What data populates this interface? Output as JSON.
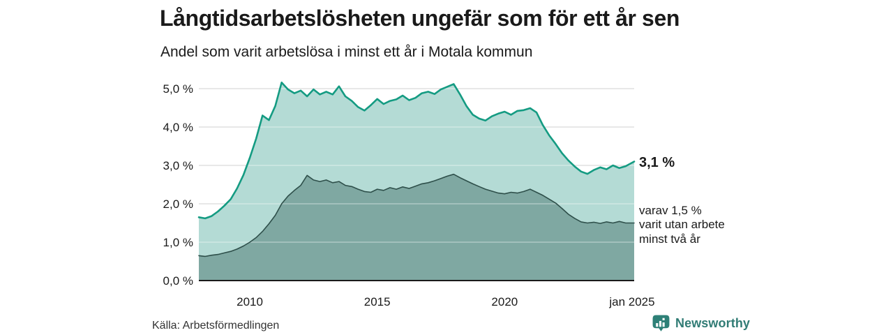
{
  "chart_data": {
    "type": "area",
    "title": "Långtidsarbetslösheten ungefär som för ett år sen",
    "subtitle": "Andel som varit arbetslösa i minst ett år i Motala kommun",
    "xlabel": "",
    "ylabel": "",
    "ylim": [
      0,
      5.3
    ],
    "xlim": [
      2008,
      2025.083
    ],
    "grid": true,
    "legend_position": "none",
    "x": [
      2008,
      2008.25,
      2008.5,
      2008.75,
      2009,
      2009.25,
      2009.5,
      2009.75,
      2010,
      2010.25,
      2010.5,
      2010.75,
      2011,
      2011.25,
      2011.5,
      2011.75,
      2012,
      2012.25,
      2012.5,
      2012.75,
      2013,
      2013.25,
      2013.5,
      2013.75,
      2014,
      2014.25,
      2014.5,
      2014.75,
      2015,
      2015.25,
      2015.5,
      2015.75,
      2016,
      2016.25,
      2016.5,
      2016.75,
      2017,
      2017.25,
      2017.5,
      2017.75,
      2018,
      2018.25,
      2018.5,
      2018.75,
      2019,
      2019.25,
      2019.5,
      2019.75,
      2020,
      2020.25,
      2020.5,
      2020.75,
      2021,
      2021.25,
      2021.5,
      2021.75,
      2022,
      2022.25,
      2022.5,
      2022.75,
      2023,
      2023.25,
      2023.5,
      2023.75,
      2024,
      2024.25,
      2024.5,
      2024.75,
      2025.083
    ],
    "series": [
      {
        "name": "Andel arbetslösa minst ett år",
        "line_color": "#149b82",
        "fill_color": "#b4dbd5",
        "line_width": 2.6,
        "latest_value": 3.1,
        "values": [
          1.65,
          1.62,
          1.68,
          1.8,
          1.95,
          2.12,
          2.4,
          2.75,
          3.2,
          3.7,
          4.3,
          4.18,
          4.55,
          5.16,
          4.98,
          4.88,
          4.95,
          4.8,
          4.98,
          4.85,
          4.92,
          4.85,
          5.06,
          4.8,
          4.68,
          4.52,
          4.43,
          4.57,
          4.73,
          4.6,
          4.68,
          4.72,
          4.82,
          4.7,
          4.76,
          4.88,
          4.92,
          4.86,
          4.98,
          5.05,
          5.12,
          4.85,
          4.55,
          4.32,
          4.22,
          4.17,
          4.28,
          4.35,
          4.4,
          4.32,
          4.42,
          4.44,
          4.49,
          4.38,
          4.05,
          3.78,
          3.56,
          3.32,
          3.13,
          2.97,
          2.84,
          2.78,
          2.88,
          2.95,
          2.9,
          3.0,
          2.93,
          2.98,
          3.1
        ]
      },
      {
        "name": "varav arbetslösa minst två år",
        "line_color": "#2e4f4a",
        "fill_color": "#7fa8a2",
        "line_width": 1.6,
        "latest_value": 1.5,
        "values": [
          0.65,
          0.63,
          0.66,
          0.68,
          0.72,
          0.76,
          0.82,
          0.9,
          1.0,
          1.12,
          1.28,
          1.48,
          1.7,
          2.0,
          2.2,
          2.35,
          2.48,
          2.74,
          2.62,
          2.58,
          2.62,
          2.55,
          2.58,
          2.48,
          2.45,
          2.38,
          2.32,
          2.3,
          2.38,
          2.35,
          2.42,
          2.38,
          2.44,
          2.4,
          2.46,
          2.52,
          2.55,
          2.6,
          2.66,
          2.72,
          2.77,
          2.68,
          2.6,
          2.52,
          2.45,
          2.38,
          2.33,
          2.28,
          2.26,
          2.3,
          2.28,
          2.32,
          2.38,
          2.3,
          2.22,
          2.12,
          2.02,
          1.88,
          1.73,
          1.62,
          1.53,
          1.5,
          1.52,
          1.49,
          1.53,
          1.5,
          1.54,
          1.5,
          1.5
        ]
      }
    ],
    "yticks": [
      {
        "v": 0,
        "label": "0,0 %"
      },
      {
        "v": 1,
        "label": "1,0 %"
      },
      {
        "v": 2,
        "label": "2,0 %"
      },
      {
        "v": 3,
        "label": "3,0 %"
      },
      {
        "v": 4,
        "label": "4,0 %"
      },
      {
        "v": 5,
        "label": "5,0 %"
      }
    ],
    "xticks": [
      {
        "v": 2010,
        "label": "2010"
      },
      {
        "v": 2015,
        "label": "2015"
      },
      {
        "v": 2020,
        "label": "2020"
      },
      {
        "v": 2025,
        "label": "jan 2025"
      }
    ],
    "gridline_color": "#d9d9d9",
    "axis_line_color": "#1a1a1a"
  },
  "annotations": {
    "latest_total": "3,1 %",
    "secondary_lines": [
      "varav 1,5 %",
      "varit utan arbete",
      "minst två år"
    ]
  },
  "source": "Källa: Arbetsförmedlingen",
  "brand": {
    "name": "Newsworthy",
    "icon": "bar-chart-badge-icon",
    "text_color": "#317c75",
    "icon_bg": "#2e8077"
  }
}
